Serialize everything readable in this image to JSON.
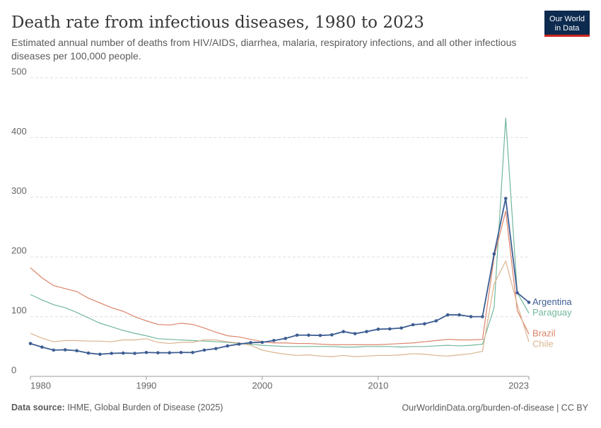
{
  "chart_data": {
    "type": "line",
    "title": "Death rate from infectious diseases, 1980 to 2023",
    "subtitle": "Estimated annual number of deaths from HIV/AIDS, diarrhea, malaria, respiratory infections, and all other infectious diseases per 100,000 people.",
    "logo": [
      "Our World",
      "in Data"
    ],
    "source_label": "Data source:",
    "source": "IHME, Global Burden of Disease (2025)",
    "url_license": "OurWorldinData.org/burden-of-disease | CC BY",
    "x": [
      1980,
      1981,
      1982,
      1983,
      1984,
      1985,
      1986,
      1987,
      1988,
      1989,
      1990,
      1991,
      1992,
      1993,
      1994,
      1995,
      1996,
      1997,
      1998,
      1999,
      2000,
      2001,
      2002,
      2003,
      2004,
      2005,
      2006,
      2007,
      2008,
      2009,
      2010,
      2011,
      2012,
      2013,
      2014,
      2015,
      2016,
      2017,
      2018,
      2019,
      2020,
      2021,
      2022,
      2023
    ],
    "xlim": [
      1980,
      2023
    ],
    "xticks": [
      1980,
      1990,
      2000,
      2010,
      2023
    ],
    "ylim": [
      0,
      500
    ],
    "yticks": [
      0,
      100,
      200,
      300,
      400,
      500
    ],
    "grid": true,
    "series": [
      {
        "name": "Paraguay",
        "color": "#72b79b",
        "markers": false,
        "values": [
          137,
          128,
          120,
          115,
          107,
          98,
          89,
          83,
          77,
          72,
          68,
          63,
          62,
          61,
          60,
          59,
          58,
          57,
          55,
          54,
          52,
          51,
          50,
          50,
          50,
          50,
          50,
          49,
          49,
          50,
          50,
          50,
          49,
          50,
          50,
          51,
          52,
          51,
          52,
          54,
          115,
          433,
          140,
          106
        ]
      },
      {
        "name": "Brazil",
        "color": "#dc836a",
        "markers": false,
        "values": [
          182,
          165,
          152,
          147,
          142,
          131,
          123,
          115,
          109,
          100,
          93,
          87,
          86,
          89,
          87,
          81,
          74,
          68,
          66,
          62,
          58,
          56,
          56,
          55,
          55,
          54,
          53,
          53,
          53,
          53,
          53,
          54,
          55,
          56,
          58,
          60,
          62,
          61,
          61,
          62,
          200,
          277,
          110,
          71
        ]
      },
      {
        "name": "Chile",
        "color": "#dab48e",
        "markers": false,
        "values": [
          72,
          64,
          58,
          60,
          60,
          59,
          59,
          58,
          61,
          61,
          63,
          57,
          55,
          57,
          57,
          61,
          61,
          58,
          56,
          52,
          44,
          40,
          37,
          35,
          36,
          34,
          33,
          35,
          33,
          34,
          35,
          35,
          36,
          38,
          37,
          35,
          34,
          36,
          38,
          42,
          155,
          193,
          120,
          58
        ]
      },
      {
        "name": "Argentina",
        "color": "#3d5d92",
        "markers": true,
        "values": [
          55,
          49,
          44,
          44.5,
          43,
          39,
          37,
          38.5,
          39,
          38.5,
          40,
          39.5,
          39.5,
          40,
          40,
          44,
          46.5,
          51,
          54,
          56.5,
          57,
          60,
          63.5,
          69,
          69,
          68.5,
          69.5,
          75,
          71.5,
          75,
          79,
          79.5,
          81,
          86.5,
          88,
          93,
          103,
          103,
          100,
          100,
          205,
          298,
          140,
          124
        ]
      }
    ]
  }
}
